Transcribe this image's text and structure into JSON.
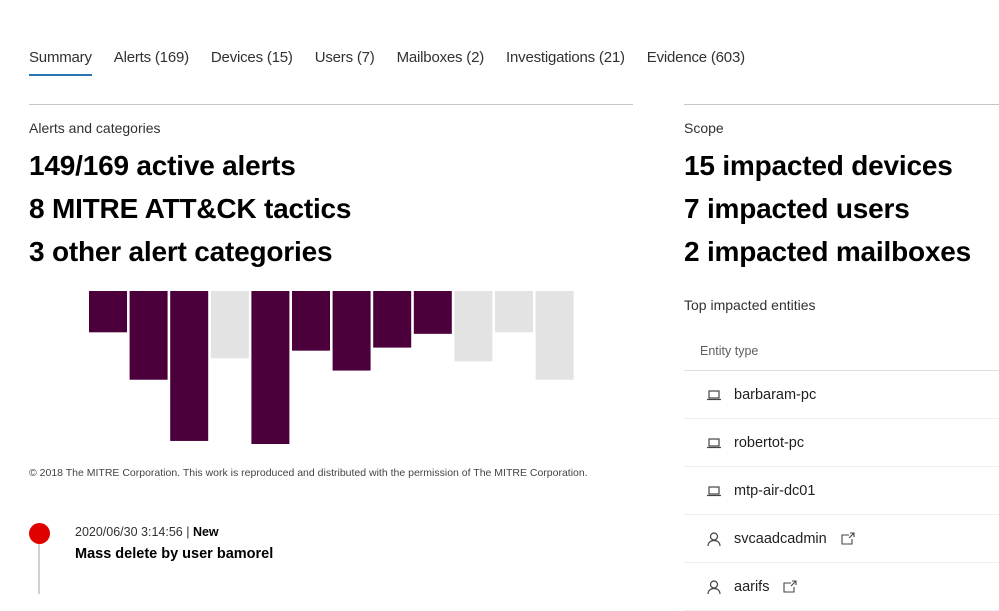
{
  "tabs": [
    {
      "label": "Summary",
      "active": true
    },
    {
      "label": "Alerts (169)"
    },
    {
      "label": "Devices (15)"
    },
    {
      "label": "Users (7)"
    },
    {
      "label": "Mailboxes (2)"
    },
    {
      "label": "Investigations (21)"
    },
    {
      "label": "Evidence (603)"
    }
  ],
  "alerts": {
    "heading": "Alerts and categories",
    "lines": [
      "149/169 active alerts",
      "8 MITRE ATT&CK tactics",
      "3 other alert categories"
    ],
    "copyright": "© 2018 The MITRE Corporation. This work is reproduced and distributed with the permission of The MITRE Corporation."
  },
  "chart_data": {
    "type": "bar",
    "orientation": "downward",
    "categories": [
      "1",
      "2",
      "3",
      "4",
      "5",
      "6",
      "7",
      "8",
      "9",
      "10",
      "11",
      "12"
    ],
    "values": [
      0.27,
      0.58,
      0.98,
      0.44,
      1.0,
      0.39,
      0.52,
      0.37,
      0.28,
      0.46,
      0.27,
      0.58
    ],
    "active": [
      true,
      true,
      true,
      false,
      true,
      true,
      true,
      true,
      true,
      false,
      false,
      false
    ],
    "colors": {
      "active": "#4b003c",
      "inactive": "#e3e3e3"
    }
  },
  "scope": {
    "heading": "Scope",
    "lines": [
      "15 impacted devices",
      "7 impacted users",
      "2 impacted mailboxes"
    ],
    "top_heading": "Top impacted entities",
    "column": "Entity type",
    "entities": [
      {
        "name": "barbaram-pc",
        "type": "device"
      },
      {
        "name": "robertot-pc",
        "type": "device"
      },
      {
        "name": "mtp-air-dc01",
        "type": "device"
      },
      {
        "name": "svcaadcadmin",
        "type": "user"
      },
      {
        "name": "aarifs",
        "type": "user"
      }
    ]
  },
  "timeline": {
    "timestamp": "2020/06/30 3:14:56",
    "separator": " | ",
    "status": "New",
    "title": "Mass delete by user bamorel",
    "severity_color": "#e00000"
  }
}
